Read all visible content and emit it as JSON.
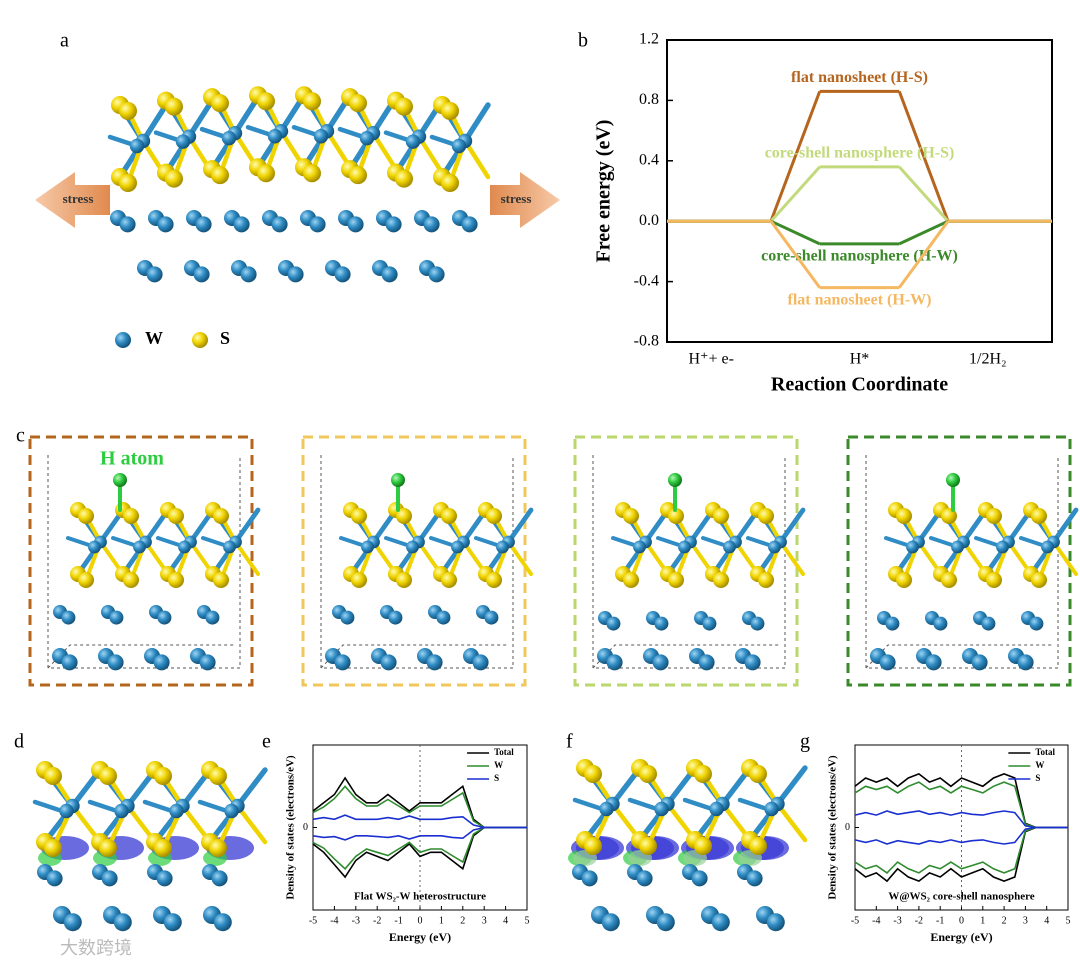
{
  "panel_labels": [
    "a",
    "b",
    "c",
    "d",
    "e",
    "f",
    "g"
  ],
  "stress_labels": [
    "stress",
    "stress"
  ],
  "atom_legend": [
    "W",
    "S"
  ],
  "h_atom_label": "H atom",
  "watermark": "大数跨境",
  "chart_data": [
    {
      "type": "energy-levels",
      "ylabel": "Free energy (eV)",
      "xlabel": "Reaction Coordinate",
      "categories": [
        "H⁺+ e-",
        "H*",
        "1/2H₂"
      ],
      "series": [
        {
          "name": "flat nanosheet (H-S)",
          "color": "#b5651d",
          "values": [
            0,
            0.86,
            0
          ]
        },
        {
          "name": "core-shell nanosphere (H-S)",
          "color": "#c3da7c",
          "values": [
            0,
            0.36,
            0
          ]
        },
        {
          "name": "core-shell nanosphere (H-W)",
          "color": "#3b8a2a",
          "values": [
            0,
            -0.15,
            0
          ]
        },
        {
          "name": "flat nanosheet (H-W)",
          "color": "#f5b862",
          "values": [
            0,
            -0.44,
            0
          ]
        }
      ],
      "ylim": [
        -0.8,
        1.2
      ],
      "yticks": [
        -0.8,
        -0.4,
        {
          "value": 0,
          "label": "0.0"
        },
        0.4,
        0.8,
        1.2
      ]
    },
    {
      "type": "dos",
      "ylabel": "Density of states (electrons/eV)",
      "xlabel": "Energy (eV)",
      "annotation": "Flat WS₂-W heterostructure",
      "x": [
        -5,
        -4.5,
        -4,
        -3.5,
        -3,
        -2.5,
        -2,
        -1.5,
        -1,
        -0.5,
        0,
        0.5,
        1,
        1.5,
        2,
        2.5,
        3,
        3.5,
        4,
        4.5,
        5
      ],
      "vline": 0,
      "series": [
        {
          "name": "Total",
          "color": "#000000",
          "values": [
            2,
            3,
            4,
            6,
            4,
            3,
            3,
            4,
            3,
            2,
            3,
            3,
            3,
            4,
            5,
            1,
            0,
            0,
            0,
            0,
            0
          ],
          "values_down": [
            -2,
            -3,
            -4.5,
            -6,
            -4,
            -3,
            -3.5,
            -4,
            -3,
            -2,
            -3.5,
            -3,
            -3,
            -4,
            -5,
            -1,
            0,
            0,
            0,
            0,
            0
          ]
        },
        {
          "name": "W",
          "color": "#2e8b2e",
          "values": [
            1.8,
            2.5,
            3.5,
            5,
            3.5,
            2.6,
            2.6,
            3.4,
            2.6,
            1.8,
            2.6,
            2.6,
            2.6,
            3.4,
            4.2,
            0.8,
            0,
            0,
            0,
            0,
            0
          ],
          "values_down": [
            -1.8,
            -2.5,
            -3.8,
            -5,
            -3.5,
            -2.6,
            -3,
            -3.4,
            -2.6,
            -1.8,
            -3,
            -2.6,
            -2.6,
            -3.4,
            -4.2,
            -0.8,
            0,
            0,
            0,
            0,
            0
          ]
        },
        {
          "name": "S",
          "color": "#1a2fd0",
          "values": [
            1,
            1.2,
            1,
            1.5,
            1,
            1,
            1,
            1.2,
            1,
            1.4,
            1,
            1,
            1,
            1.2,
            1.3,
            0.3,
            0,
            0,
            0,
            0,
            0
          ],
          "values_down": [
            -1,
            -1.2,
            -1.1,
            -1.5,
            -1,
            -1,
            -1.1,
            -1.2,
            -1,
            -1.4,
            -1,
            -1,
            -1,
            -1.2,
            -1.3,
            -0.3,
            0,
            0,
            0,
            0,
            0
          ]
        }
      ],
      "xlim": [
        -5,
        5
      ],
      "xticks": [
        -5,
        -4,
        -3,
        -2,
        -1,
        0,
        1,
        2,
        3,
        4,
        5
      ],
      "ylim": [
        -10,
        10
      ],
      "yticks": [
        0
      ]
    },
    {
      "type": "dos",
      "ylabel": "Density of states (electrons/eV)",
      "xlabel": "Energy (eV)",
      "annotation": "W@WS₂ core-shell nanosphere",
      "x": [
        -5,
        -4.5,
        -4,
        -3.5,
        -3,
        -2.5,
        -2,
        -1.5,
        -1,
        -0.5,
        0,
        0.5,
        1,
        1.5,
        2,
        2.5,
        3,
        3.5,
        4,
        4.5,
        5
      ],
      "vline": 0,
      "series": [
        {
          "name": "Total",
          "color": "#000000",
          "values": [
            5,
            6,
            5.5,
            6,
            5,
            6,
            6.5,
            5.5,
            6,
            5,
            6,
            5.5,
            5,
            6,
            6.5,
            6,
            0.5,
            0,
            0,
            0,
            0
          ],
          "values_down": [
            -5,
            -6,
            -5.5,
            -6.5,
            -5,
            -6,
            -6.5,
            -5.5,
            -6,
            -5,
            -6,
            -5.5,
            -5,
            -6,
            -6.5,
            -6,
            -0.5,
            0,
            0,
            0,
            0
          ]
        },
        {
          "name": "W",
          "color": "#2e8b2e",
          "values": [
            4.2,
            5,
            4.6,
            5,
            4.2,
            5,
            5.5,
            4.6,
            5,
            4.2,
            5,
            4.6,
            4.2,
            5,
            5.5,
            5,
            0.4,
            0,
            0,
            0,
            0
          ],
          "values_down": [
            -4.2,
            -5,
            -4.6,
            -5.5,
            -4.2,
            -5,
            -5.5,
            -4.6,
            -5,
            -4.2,
            -5,
            -4.6,
            -4.2,
            -5,
            -5.5,
            -5,
            -0.4,
            0,
            0,
            0,
            0
          ]
        },
        {
          "name": "S",
          "color": "#1a2fd0",
          "values": [
            1.5,
            1.8,
            1.5,
            2,
            1.6,
            1.8,
            2,
            1.6,
            1.8,
            1.5,
            1.8,
            1.6,
            1.5,
            1.8,
            2,
            1.8,
            0.2,
            0,
            0,
            0,
            0
          ],
          "values_down": [
            -1.5,
            -1.8,
            -1.5,
            -2,
            -1.6,
            -1.8,
            -2,
            -1.6,
            -1.8,
            -1.5,
            -1.8,
            -1.6,
            -1.5,
            -1.8,
            -2,
            -1.8,
            -0.2,
            0,
            0,
            0,
            0
          ]
        }
      ],
      "xlim": [
        -5,
        5
      ],
      "xticks": [
        -5,
        -4,
        -3,
        -2,
        -1,
        0,
        1,
        2,
        3,
        4,
        5
      ],
      "ylim": [
        -10,
        10
      ],
      "yticks": [
        0
      ]
    }
  ]
}
